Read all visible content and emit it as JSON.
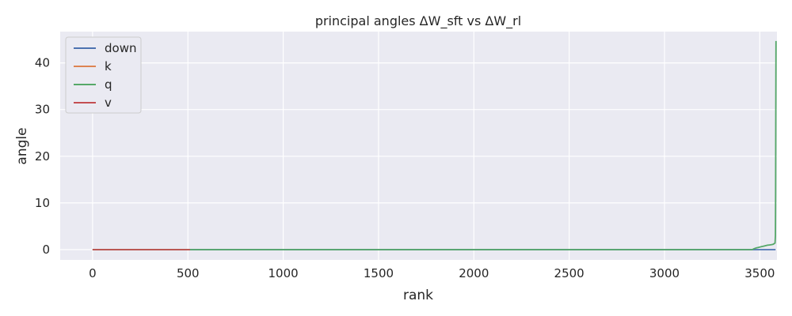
{
  "chart_data": {
    "type": "line",
    "title": "principal angles ΔW_sft vs ΔW_rl",
    "xlabel": "rank",
    "ylabel": "angle",
    "xlim": [
      -170,
      3590
    ],
    "ylim": [
      -2.2,
      46.7
    ],
    "xticks": [
      0,
      500,
      1000,
      1500,
      2000,
      2500,
      3000,
      3500
    ],
    "yticks": [
      0,
      10,
      20,
      30,
      40
    ],
    "grid": true,
    "legend_position": "top-left",
    "background": "#eaeaf2",
    "series": [
      {
        "name": "down",
        "color": "#4c72b0",
        "x": [
          0,
          3500,
          3583
        ],
        "y": [
          0,
          0,
          0
        ]
      },
      {
        "name": "k",
        "color": "#dd8452",
        "x": [
          0,
          511
        ],
        "y": [
          0,
          0
        ]
      },
      {
        "name": "q",
        "color": "#55a868",
        "x": [
          0,
          3460,
          3470,
          3480,
          3490,
          3500,
          3510,
          3520,
          3530,
          3540,
          3550,
          3560,
          3570,
          3580,
          3582,
          3583,
          3584,
          3585
        ],
        "y": [
          0,
          0,
          0.2,
          0.35,
          0.45,
          0.55,
          0.65,
          0.75,
          0.85,
          0.95,
          1.0,
          1.05,
          1.15,
          1.4,
          3.0,
          12.0,
          30.0,
          44.7
        ]
      },
      {
        "name": "v",
        "color": "#c44e52",
        "x": [
          0,
          511
        ],
        "y": [
          0,
          0
        ]
      }
    ]
  }
}
